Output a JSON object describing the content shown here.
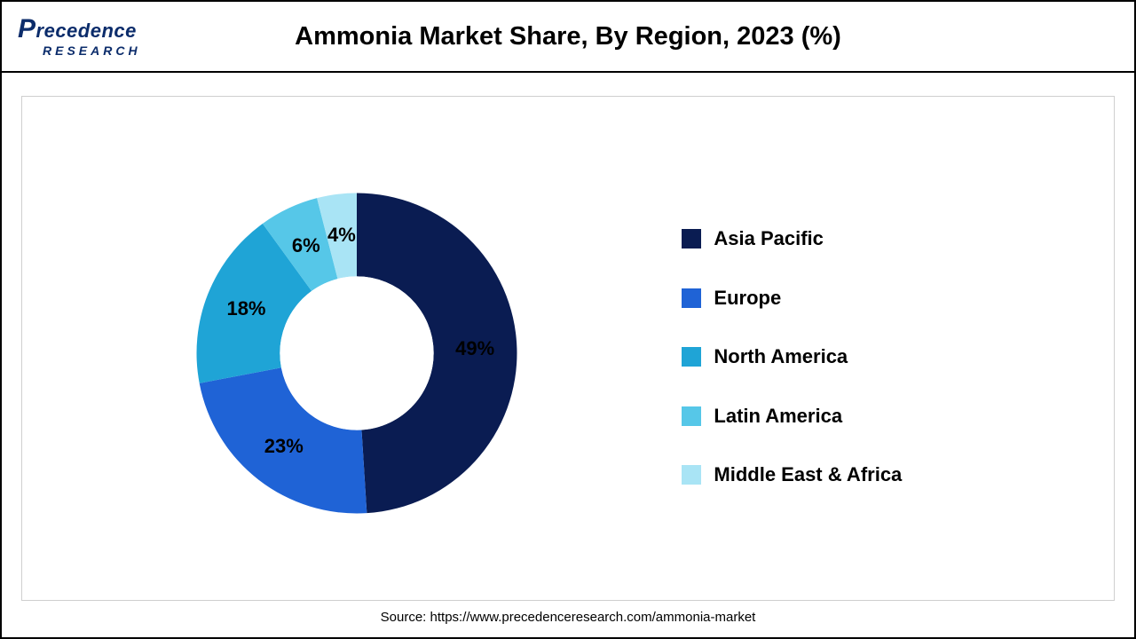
{
  "header": {
    "logo_top": "Precedence",
    "logo_bottom": "RESEARCH",
    "title": "Ammonia Market Share, By Region, 2023 (%)"
  },
  "chart": {
    "type": "donut",
    "inner_radius_pct": 48,
    "outer_radius_pct": 100,
    "start_angle_deg": 0,
    "background_color": "#ffffff",
    "border_color": "#cfcfcf",
    "label_fontsize": 22,
    "label_fontweight": 700,
    "label_color": "#000000",
    "slices": [
      {
        "name": "Asia Pacific",
        "value": 49,
        "color": "#0a1c52",
        "label": "49%"
      },
      {
        "name": "Europe",
        "value": 23,
        "color": "#1f63d6",
        "label": "23%"
      },
      {
        "name": "North America",
        "value": 18,
        "color": "#1fa4d6",
        "label": "18%"
      },
      {
        "name": "Latin America",
        "value": 6,
        "color": "#56c7e8",
        "label": "6%"
      },
      {
        "name": "Middle East & Africa",
        "value": 4,
        "color": "#a9e4f5",
        "label": "4%"
      }
    ]
  },
  "legend": {
    "fontsize": 22,
    "fontweight": 700,
    "swatch_size": 22,
    "items": [
      {
        "label": "Asia Pacific",
        "color": "#0a1c52"
      },
      {
        "label": "Europe",
        "color": "#1f63d6"
      },
      {
        "label": "North America",
        "color": "#1fa4d6"
      },
      {
        "label": "Latin America",
        "color": "#56c7e8"
      },
      {
        "label": "Middle East & Africa",
        "color": "#a9e4f5"
      }
    ]
  },
  "source": {
    "text": "Source: https://www.precedenceresearch.com/ammonia-market",
    "fontsize": 15
  }
}
